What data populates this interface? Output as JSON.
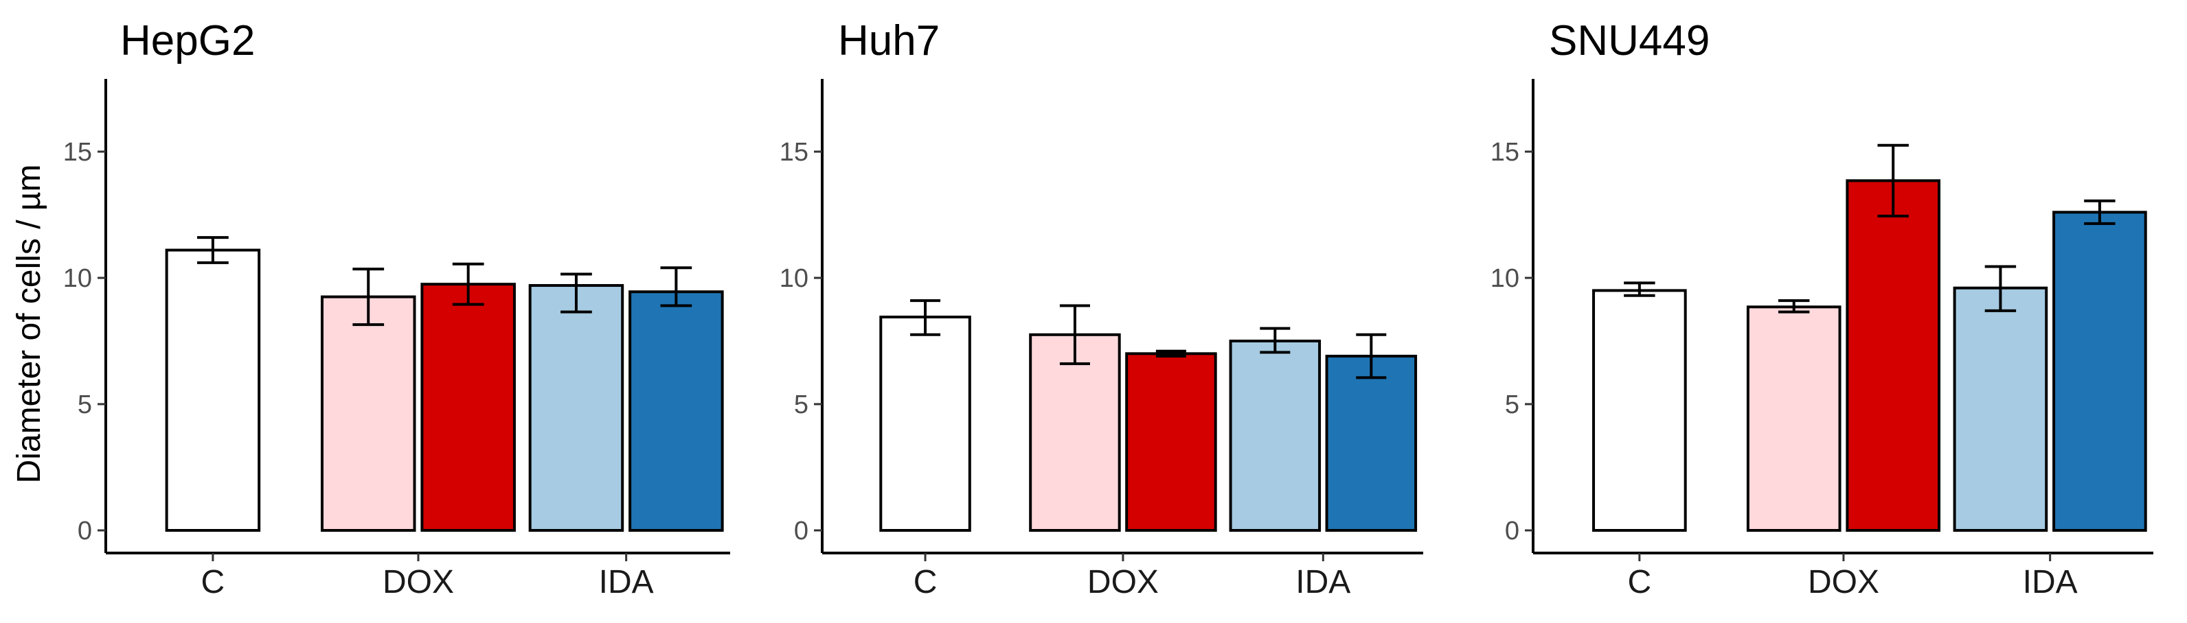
{
  "chart_data": [
    {
      "type": "bar",
      "title": "HepG2",
      "ylabel": "Diameter of cells / µm",
      "xlabel": "",
      "ylim": [
        0,
        18
      ],
      "yticks": [
        0,
        5,
        10,
        15
      ],
      "grid": false,
      "categories": [
        "C",
        "DOX",
        "IDA"
      ],
      "bars": [
        {
          "category": "C",
          "value": 11.1,
          "err_low": 10.6,
          "err_high": 11.6,
          "color": "#ffffff"
        },
        {
          "category": "DOX",
          "value": 9.25,
          "err_low": 8.15,
          "err_high": 10.35,
          "color": "#ffd9dc"
        },
        {
          "category": "DOX",
          "value": 9.75,
          "err_low": 8.95,
          "err_high": 10.55,
          "color": "#d40000"
        },
        {
          "category": "IDA",
          "value": 9.7,
          "err_low": 8.65,
          "err_high": 10.15,
          "color": "#a6cbe3"
        },
        {
          "category": "IDA",
          "value": 9.45,
          "err_low": 8.9,
          "err_high": 10.4,
          "color": "#1f75b4"
        }
      ]
    },
    {
      "type": "bar",
      "title": "Huh7",
      "ylabel": "",
      "xlabel": "",
      "ylim": [
        0,
        18
      ],
      "yticks": [
        0,
        5,
        10,
        15
      ],
      "grid": false,
      "categories": [
        "C",
        "DOX",
        "IDA"
      ],
      "bars": [
        {
          "category": "C",
          "value": 8.45,
          "err_low": 7.75,
          "err_high": 9.1,
          "color": "#ffffff"
        },
        {
          "category": "DOX",
          "value": 7.75,
          "err_low": 6.6,
          "err_high": 8.9,
          "color": "#ffd9dc"
        },
        {
          "category": "DOX",
          "value": 7.0,
          "err_low": 6.9,
          "err_high": 7.1,
          "color": "#d40000"
        },
        {
          "category": "IDA",
          "value": 7.5,
          "err_low": 7.05,
          "err_high": 8.0,
          "color": "#a6cbe3"
        },
        {
          "category": "IDA",
          "value": 6.9,
          "err_low": 6.05,
          "err_high": 7.75,
          "color": "#1f75b4"
        }
      ]
    },
    {
      "type": "bar",
      "title": "SNU449",
      "ylabel": "",
      "xlabel": "",
      "ylim": [
        0,
        18
      ],
      "yticks": [
        0,
        5,
        10,
        15
      ],
      "grid": false,
      "categories": [
        "C",
        "DOX",
        "IDA"
      ],
      "bars": [
        {
          "category": "C",
          "value": 9.5,
          "err_low": 9.3,
          "err_high": 9.8,
          "color": "#ffffff"
        },
        {
          "category": "DOX",
          "value": 8.85,
          "err_low": 8.65,
          "err_high": 9.1,
          "color": "#ffd9dc"
        },
        {
          "category": "DOX",
          "value": 13.85,
          "err_low": 12.45,
          "err_high": 15.25,
          "color": "#d40000"
        },
        {
          "category": "IDA",
          "value": 9.6,
          "err_low": 8.7,
          "err_high": 10.45,
          "color": "#a6cbe3"
        },
        {
          "category": "IDA",
          "value": 12.6,
          "err_low": 12.15,
          "err_high": 13.05,
          "color": "#1f75b4"
        }
      ]
    }
  ]
}
